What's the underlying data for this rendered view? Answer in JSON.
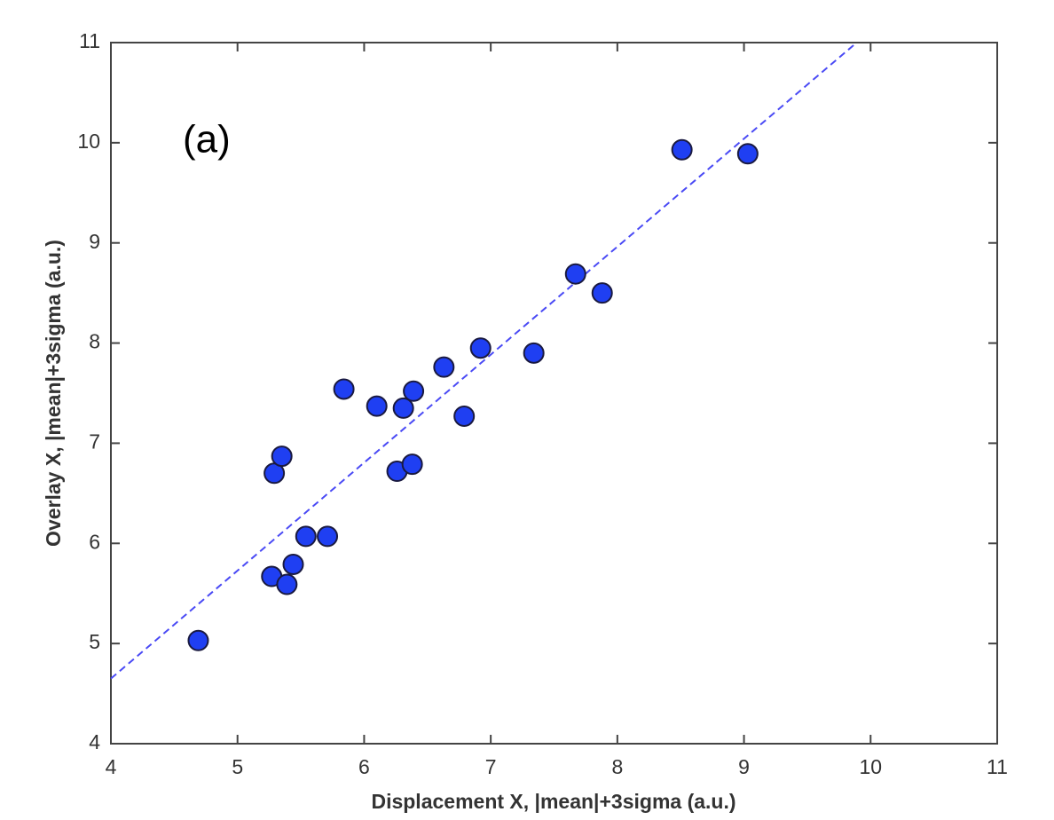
{
  "chart_data": {
    "type": "scatter",
    "annotation": "(a)",
    "xlabel": "Displacement X, |mean|+3sigma (a.u.)",
    "ylabel": "Overlay X, |mean|+3sigma (a.u.)",
    "x": [
      4.69,
      5.27,
      5.29,
      5.35,
      5.39,
      5.44,
      5.54,
      5.71,
      5.84,
      6.1,
      6.26,
      6.31,
      6.38,
      6.39,
      6.63,
      6.79,
      6.92,
      7.34,
      7.67,
      7.88,
      8.51,
      9.03
    ],
    "values": [
      5.03,
      5.67,
      6.7,
      6.87,
      5.59,
      5.79,
      6.07,
      6.07,
      7.54,
      7.37,
      6.72,
      7.35,
      6.79,
      7.52,
      7.76,
      7.27,
      7.95,
      7.9,
      8.69,
      8.5,
      9.93,
      9.89
    ],
    "color": "#1f3ff2",
    "fit_line": {
      "x": [
        4,
        9.89
      ],
      "y": [
        4.65,
        11
      ],
      "color": "#4a4af5"
    },
    "xlim": [
      4,
      11
    ],
    "ylim": [
      4,
      11
    ],
    "xticks": [
      4,
      5,
      6,
      7,
      8,
      9,
      10,
      11
    ],
    "yticks": [
      4,
      5,
      6,
      7,
      8,
      9,
      10,
      11
    ]
  }
}
